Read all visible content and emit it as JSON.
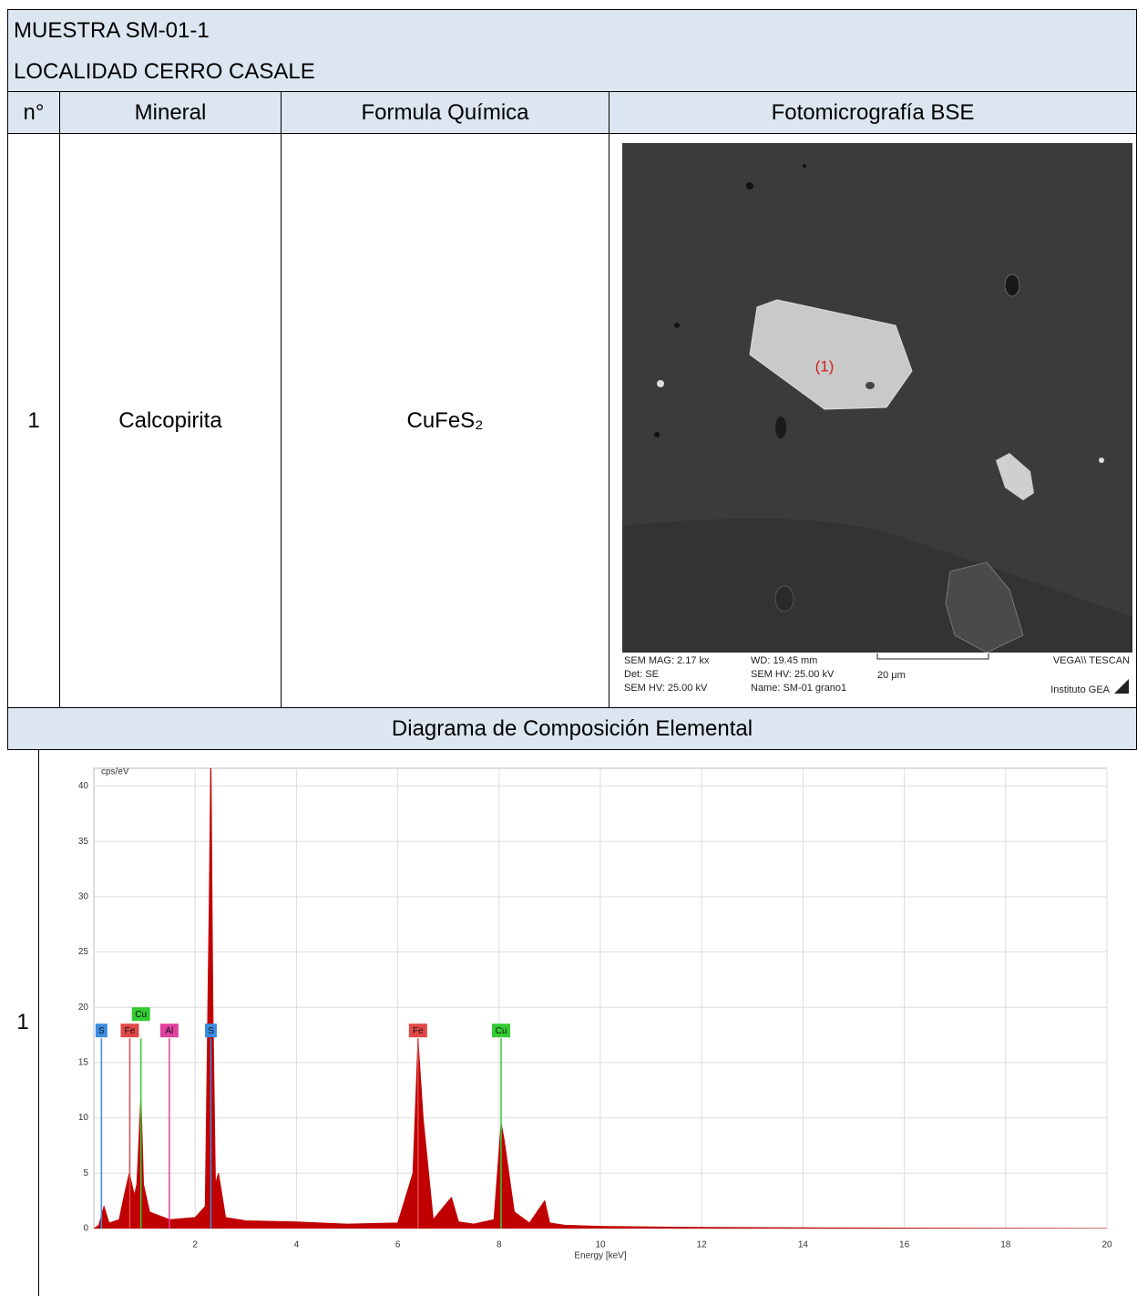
{
  "header": {
    "sample": "MUESTRA SM-01-1",
    "locality": "LOCALIDAD CERRO CASALE"
  },
  "table": {
    "columns": [
      "n°",
      "Mineral",
      "Formula Química",
      "Fotomicrografía BSE"
    ],
    "rows": [
      [
        "1",
        "Calcopirita",
        "CuFeS₂"
      ]
    ],
    "diagram_title": "Diagrama de Composición Elemental",
    "diagram_row_label": "1"
  },
  "sem_image": {
    "grain_label": "(1)",
    "info": [
      "SEM MAG: 2.17 kx",
      "Det: SE",
      "SEM HV: 25.00 kV",
      "WD: 19.45 mm",
      "SEM HV: 25.00 kV",
      "Name: SM-01 grano1",
      "20 μm",
      "VEGA\\\\ TESCAN",
      "Instituto GEA"
    ]
  },
  "spectrum": {
    "type": "area",
    "y_label": "cps/eV",
    "x_label": "Energy [keV]",
    "color": "#c00000",
    "x": [
      0,
      0.1,
      0.2,
      0.3,
      0.5,
      0.6,
      0.7,
      0.8,
      0.85,
      0.93,
      0.98,
      1.1,
      1.5,
      2.0,
      2.2,
      2.28,
      2.31,
      2.35,
      2.4,
      2.46,
      2.6,
      3,
      4,
      5,
      6,
      6.3,
      6.4,
      6.5,
      6.7,
      7.0,
      7.06,
      7.2,
      7.5,
      7.9,
      8.04,
      8.1,
      8.3,
      8.6,
      8.9,
      9.0,
      9.3,
      10,
      12,
      15,
      20
    ],
    "values": [
      0,
      0.3,
      2,
      0.5,
      0.8,
      3,
      5,
      3,
      4,
      12,
      4,
      1.5,
      0.8,
      1,
      2,
      30,
      43,
      20,
      4,
      5,
      1,
      0.7,
      0.6,
      0.4,
      0.5,
      5,
      17,
      10,
      0.8,
      2.5,
      2.8,
      0.6,
      0.4,
      0.8,
      9.5,
      8,
      1.5,
      0.5,
      2.5,
      0.5,
      0.3,
      0.2,
      0.1,
      0.05,
      0
    ],
    "xlim": [
      0,
      20
    ],
    "ylim": [
      0,
      41.6
    ],
    "xticks": [
      2,
      4,
      6,
      8,
      10,
      12,
      14,
      16,
      18,
      20
    ],
    "yticks": [
      0,
      5,
      10,
      15,
      20,
      25,
      30,
      35,
      40
    ],
    "grid": true,
    "lines": [
      {
        "label": "S",
        "x": 0.15,
        "y": 17.2,
        "color": "#3c8ce0"
      },
      {
        "label": "Fe",
        "x": 0.71,
        "y": 17.2,
        "color": "#e04848"
      },
      {
        "label": "Cu",
        "x": 0.93,
        "y": 17.2,
        "color": "#33cc33"
      },
      {
        "label": "Al",
        "x": 1.49,
        "y": 17.2,
        "color": "#e040a0"
      },
      {
        "label": "S",
        "x": 2.31,
        "y": 17.2,
        "color": "#3c8ce0"
      },
      {
        "label": "Fe",
        "x": 6.4,
        "y": 17.2,
        "color": "#e04848"
      },
      {
        "label": "Cu",
        "x": 8.04,
        "y": 17.2,
        "color": "#33cc33"
      }
    ]
  }
}
